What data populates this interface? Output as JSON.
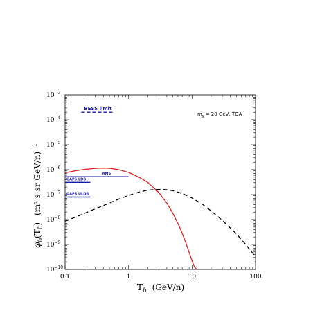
{
  "chart_data": {
    "type": "line",
    "title": "",
    "xlabel": "T",
    "xlabel_sub": "D̄",
    "xlabel_units": "(GeV/n)",
    "ylabel_symbol": "φ",
    "ylabel_sub": "D̄",
    "ylabel_arg": "(T",
    "ylabel_arg_sub": "D̄",
    "ylabel_arg_close": ")",
    "ylabel_units": "(m² s sr GeV/n)",
    "ylabel_exp": "−1",
    "x_scale": "log",
    "y_scale": "log",
    "xlim": [
      0.1,
      100
    ],
    "ylim": [
      1e-10,
      0.001
    ],
    "x_tick_labels": [
      "0.1",
      "1",
      "10",
      "100"
    ],
    "y_ticks": [
      {
        "base": "10",
        "exp": "−10"
      },
      {
        "base": "10",
        "exp": "−9"
      },
      {
        "base": "10",
        "exp": "−8"
      },
      {
        "base": "10",
        "exp": "−7"
      },
      {
        "base": "10",
        "exp": "−6"
      },
      {
        "base": "10",
        "exp": "−5"
      },
      {
        "base": "10",
        "exp": "−4"
      },
      {
        "base": "10",
        "exp": "−3"
      }
    ],
    "annotation": {
      "main": "m",
      "sub": "χ",
      "rest": "= 20 GeV, TOA"
    },
    "series": [
      {
        "color": "#e02020",
        "dash": "solid",
        "x": [
          0.1,
          0.15,
          0.2,
          0.3,
          0.4,
          0.5,
          0.7,
          1.0,
          1.5,
          2.0,
          3.0,
          4.0,
          5.0,
          6.0,
          7.0,
          8.0,
          9.0,
          10.0,
          11.0,
          11.9
        ],
        "y": [
          7.5e-07,
          9.2e-07,
          1.02e-06,
          1.13e-06,
          1.16e-06,
          1.14e-06,
          1e-06,
          7.8e-07,
          4.8e-07,
          3.1e-07,
          1.2e-07,
          4.6e-08,
          1.75e-08,
          6.9e-09,
          2.8e-09,
          1.15e-09,
          4.8e-10,
          2.2e-10,
          1.2e-10,
          1e-10
        ]
      },
      {
        "color": "#000000",
        "dash": "dashed",
        "x": [
          0.1,
          0.2,
          0.3,
          0.5,
          0.7,
          1.0,
          1.5,
          2.0,
          2.5,
          3.0,
          3.5,
          4.0,
          5.0,
          7.0,
          10.0,
          15.0,
          20.0,
          30.0,
          50.0,
          70.0,
          100.0
        ],
        "y": [
          8.5e-09,
          1.75e-08,
          2.7e-08,
          4.6e-08,
          6.6e-08,
          9.3e-08,
          1.28e-07,
          1.5e-07,
          1.58e-07,
          1.61e-07,
          1.6e-07,
          1.56e-07,
          1.43e-07,
          1.11e-07,
          7.3e-08,
          3.9e-08,
          2.2e-08,
          9.3e-09,
          2.65e-09,
          1e-09,
          3.2e-10
        ]
      }
    ],
    "limits": [
      {
        "label": "BESS limit",
        "x_start": 0.18,
        "x_end": 0.6,
        "y": 0.0002,
        "dash": "dashed",
        "color": "#1a1aa8"
      },
      {
        "label": "AMS",
        "x_start": 0.1,
        "x_end": 1.0,
        "y": 5.2e-07,
        "dash": "solid",
        "color": "#1a1aa8"
      },
      {
        "label": "GAPS LDB",
        "x_start": 0.1,
        "x_end": 0.25,
        "y": 3.1e-07,
        "dash": "solid",
        "color": "#1a1aa8"
      },
      {
        "label": "GAPS ULDB",
        "x_start": 0.1,
        "x_end": 0.25,
        "y": 8e-08,
        "dash": "solid",
        "color": "#1a1aa8"
      }
    ]
  }
}
